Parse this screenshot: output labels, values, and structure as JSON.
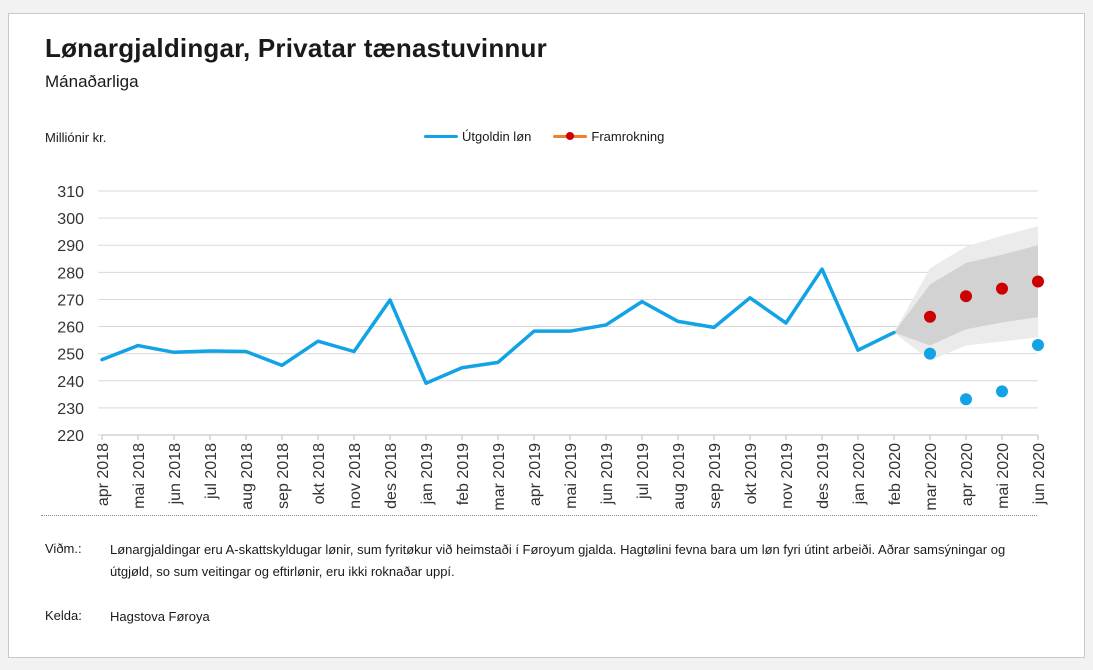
{
  "title": "Lønargjaldingar, Privatar tænastuvinnur",
  "subtitle": "Mánaðarliga",
  "unit_label": "Milliónir kr.",
  "legend": {
    "actual": "Útgoldin løn",
    "forecast": "Framrokning"
  },
  "colors": {
    "actual": "#12a2e6",
    "forecast_dot": "#cc0000",
    "forecast_line": "#f07f2a",
    "band_outer": "#ebebeb",
    "band_inner": "#d2d2d2",
    "grid": "#d9d9d9"
  },
  "notes": {
    "note_label": "Viðm.:",
    "note_text": "Lønargjaldingar eru A-skattskyldugar lønir, sum fyritøkur við heimstaði í Føroyum gjalda. Hagtølini fevna bara um løn fyri útint arbeiði. Aðrar samsýningar og útgjøld, so sum veitingar og eftirlønir, eru ikki roknaðar uppí.",
    "source_label": "Kelda:",
    "source_text": "Hagstova Føroya"
  },
  "chart_data": {
    "type": "line",
    "categories": [
      "apr 2018",
      "mai 2018",
      "jun 2018",
      "jul 2018",
      "aug 2018",
      "sep 2018",
      "okt 2018",
      "nov 2018",
      "des 2018",
      "jan 2019",
      "feb 2019",
      "mar 2019",
      "apr 2019",
      "mai 2019",
      "jun 2019",
      "jul 2019",
      "aug 2019",
      "sep 2019",
      "okt 2019",
      "nov 2019",
      "des 2019",
      "jan 2020",
      "feb 2020",
      "mar 2020",
      "apr 2020",
      "mai 2020",
      "jun 2020"
    ],
    "ylim": [
      220,
      310
    ],
    "yticks": [
      220,
      230,
      240,
      250,
      260,
      270,
      280,
      290,
      300,
      310
    ],
    "grid": true,
    "legend_position": "top-center",
    "series": [
      {
        "name": "Útgoldin løn",
        "style": "line",
        "values": [
          247.8,
          253.0,
          250.5,
          251.0,
          250.8,
          245.7,
          254.6,
          250.8,
          269.8,
          239.1,
          244.8,
          246.8,
          258.3,
          258.3,
          260.6,
          269.2,
          261.9,
          259.7,
          270.6,
          261.3,
          281.2,
          251.3,
          257.8,
          null,
          null,
          null,
          null
        ]
      },
      {
        "name": "Útgoldin løn",
        "style": "points",
        "values": [
          null,
          null,
          null,
          null,
          null,
          null,
          null,
          null,
          null,
          null,
          null,
          null,
          null,
          null,
          null,
          null,
          null,
          null,
          null,
          null,
          null,
          null,
          null,
          250.0,
          233.2,
          236.1,
          253.2
        ]
      },
      {
        "name": "Framrokning",
        "style": "points",
        "values": [
          null,
          null,
          null,
          null,
          null,
          null,
          null,
          null,
          null,
          null,
          null,
          null,
          null,
          null,
          null,
          null,
          null,
          null,
          null,
          null,
          null,
          null,
          null,
          263.6,
          271.2,
          274.0,
          276.6
        ]
      }
    ],
    "forecast_band": {
      "start_index": 22,
      "start_value": 257.8,
      "outer_upper": [
        281.5,
        289.5,
        293.5,
        297.0
      ],
      "outer_lower": [
        247.5,
        253.0,
        254.5,
        256.0
      ],
      "inner_upper": [
        275.5,
        283.5,
        286.5,
        290.0
      ],
      "inner_lower": [
        253.0,
        259.0,
        261.5,
        263.5
      ]
    }
  }
}
